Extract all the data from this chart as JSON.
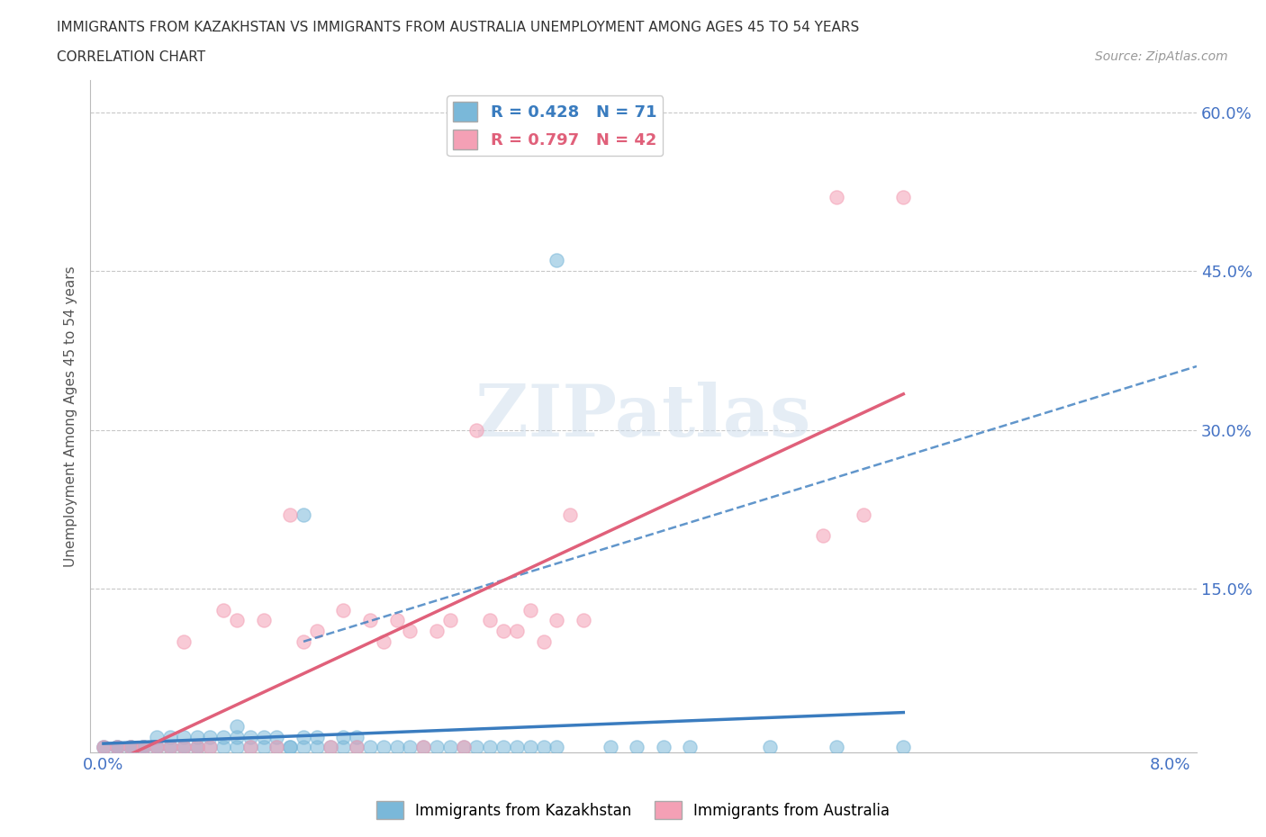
{
  "title_line1": "IMMIGRANTS FROM KAZAKHSTAN VS IMMIGRANTS FROM AUSTRALIA UNEMPLOYMENT AMONG AGES 45 TO 54 YEARS",
  "title_line2": "CORRELATION CHART",
  "source_text": "Source: ZipAtlas.com",
  "ylabel": "Unemployment Among Ages 45 to 54 years",
  "xlim": [
    -0.001,
    0.082
  ],
  "ylim": [
    -0.005,
    0.63
  ],
  "xticks": [
    0.0,
    0.08
  ],
  "xticklabels": [
    "0.0%",
    "8.0%"
  ],
  "yticks": [
    0.15,
    0.3,
    0.45,
    0.6
  ],
  "yticklabels": [
    "15.0%",
    "30.0%",
    "45.0%",
    "60.0%"
  ],
  "kaz_color": "#7ab8d9",
  "aus_color": "#f4a0b5",
  "kaz_line_color": "#3a7cbf",
  "aus_line_color": "#e0607a",
  "kaz_R": 0.428,
  "kaz_N": 71,
  "aus_R": 0.797,
  "aus_N": 42,
  "background_color": "#ffffff",
  "grid_color": "#c8c8c8",
  "tick_label_color": "#4472c4",
  "kaz_scatter": [
    [
      0.0,
      0.0
    ],
    [
      0.0,
      0.0
    ],
    [
      0.001,
      0.0
    ],
    [
      0.001,
      0.0
    ],
    [
      0.001,
      0.0
    ],
    [
      0.002,
      0.0
    ],
    [
      0.002,
      0.0
    ],
    [
      0.002,
      0.0
    ],
    [
      0.003,
      0.0
    ],
    [
      0.003,
      0.0
    ],
    [
      0.003,
      0.0
    ],
    [
      0.004,
      0.0
    ],
    [
      0.004,
      0.0
    ],
    [
      0.004,
      0.01
    ],
    [
      0.005,
      0.0
    ],
    [
      0.005,
      0.0
    ],
    [
      0.005,
      0.01
    ],
    [
      0.006,
      0.0
    ],
    [
      0.006,
      0.0
    ],
    [
      0.006,
      0.01
    ],
    [
      0.007,
      0.0
    ],
    [
      0.007,
      0.0
    ],
    [
      0.007,
      0.01
    ],
    [
      0.008,
      0.0
    ],
    [
      0.008,
      0.01
    ],
    [
      0.009,
      0.0
    ],
    [
      0.009,
      0.01
    ],
    [
      0.01,
      0.0
    ],
    [
      0.01,
      0.01
    ],
    [
      0.01,
      0.02
    ],
    [
      0.011,
      0.0
    ],
    [
      0.011,
      0.01
    ],
    [
      0.012,
      0.0
    ],
    [
      0.012,
      0.01
    ],
    [
      0.013,
      0.0
    ],
    [
      0.013,
      0.01
    ],
    [
      0.014,
      0.0
    ],
    [
      0.014,
      0.0
    ],
    [
      0.015,
      0.0
    ],
    [
      0.015,
      0.01
    ],
    [
      0.016,
      0.0
    ],
    [
      0.016,
      0.01
    ],
    [
      0.017,
      0.0
    ],
    [
      0.018,
      0.0
    ],
    [
      0.018,
      0.01
    ],
    [
      0.019,
      0.0
    ],
    [
      0.019,
      0.01
    ],
    [
      0.02,
      0.0
    ],
    [
      0.021,
      0.0
    ],
    [
      0.022,
      0.0
    ],
    [
      0.023,
      0.0
    ],
    [
      0.024,
      0.0
    ],
    [
      0.025,
      0.0
    ],
    [
      0.026,
      0.0
    ],
    [
      0.027,
      0.0
    ],
    [
      0.028,
      0.0
    ],
    [
      0.029,
      0.0
    ],
    [
      0.03,
      0.0
    ],
    [
      0.031,
      0.0
    ],
    [
      0.032,
      0.0
    ],
    [
      0.033,
      0.0
    ],
    [
      0.034,
      0.0
    ],
    [
      0.015,
      0.22
    ],
    [
      0.034,
      0.46
    ],
    [
      0.038,
      0.0
    ],
    [
      0.04,
      0.0
    ],
    [
      0.042,
      0.0
    ],
    [
      0.044,
      0.0
    ],
    [
      0.05,
      0.0
    ],
    [
      0.055,
      0.0
    ],
    [
      0.06,
      0.0
    ]
  ],
  "aus_scatter": [
    [
      0.0,
      0.0
    ],
    [
      0.001,
      0.0
    ],
    [
      0.002,
      0.0
    ],
    [
      0.003,
      0.0
    ],
    [
      0.004,
      0.0
    ],
    [
      0.005,
      0.0
    ],
    [
      0.006,
      0.0
    ],
    [
      0.006,
      0.1
    ],
    [
      0.007,
      0.0
    ],
    [
      0.008,
      0.0
    ],
    [
      0.009,
      0.13
    ],
    [
      0.01,
      0.12
    ],
    [
      0.011,
      0.0
    ],
    [
      0.012,
      0.12
    ],
    [
      0.013,
      0.0
    ],
    [
      0.014,
      0.22
    ],
    [
      0.015,
      0.1
    ],
    [
      0.016,
      0.11
    ],
    [
      0.017,
      0.0
    ],
    [
      0.018,
      0.13
    ],
    [
      0.019,
      0.0
    ],
    [
      0.02,
      0.12
    ],
    [
      0.021,
      0.1
    ],
    [
      0.022,
      0.12
    ],
    [
      0.023,
      0.11
    ],
    [
      0.024,
      0.0
    ],
    [
      0.025,
      0.11
    ],
    [
      0.026,
      0.12
    ],
    [
      0.027,
      0.0
    ],
    [
      0.028,
      0.3
    ],
    [
      0.029,
      0.12
    ],
    [
      0.03,
      0.11
    ],
    [
      0.031,
      0.11
    ],
    [
      0.032,
      0.13
    ],
    [
      0.033,
      0.1
    ],
    [
      0.034,
      0.12
    ],
    [
      0.035,
      0.22
    ],
    [
      0.036,
      0.12
    ],
    [
      0.054,
      0.2
    ],
    [
      0.057,
      0.22
    ],
    [
      0.055,
      0.52
    ],
    [
      0.06,
      0.52
    ]
  ]
}
